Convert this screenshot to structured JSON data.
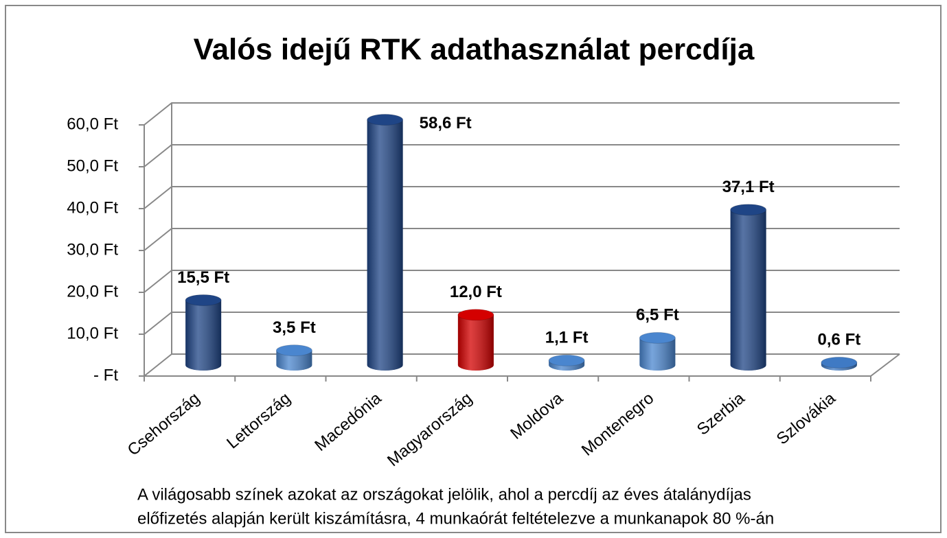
{
  "chart_data": {
    "type": "bar3d",
    "title": "Valós idejű RTK adathasználat percdíja",
    "categories": [
      "Csehország",
      "Lettország",
      "Macedónia",
      "Magyarország",
      "Moldova",
      "Montenegro",
      "Szerbia",
      "Szlovákia"
    ],
    "values": [
      15.5,
      3.5,
      58.6,
      12.0,
      1.1,
      6.5,
      37.1,
      0.6
    ],
    "value_labels": [
      "15,5 Ft",
      "3,5 Ft",
      "58,6 Ft",
      "12,0 Ft",
      "1,1 Ft",
      "6,5 Ft",
      "37,1 Ft",
      "0,6 Ft"
    ],
    "colors": [
      "#1f4586",
      "#4a86cf",
      "#1f4586",
      "#d40000",
      "#4a86cf",
      "#4a86cf",
      "#1f4586",
      "#3f7ac4"
    ],
    "ylim": [
      0,
      60
    ],
    "yticks": [
      {
        "value": 0,
        "label": "-  Ft"
      },
      {
        "value": 10,
        "label": "10,0 Ft"
      },
      {
        "value": 20,
        "label": "20,0 Ft"
      },
      {
        "value": 30,
        "label": "30,0 Ft"
      },
      {
        "value": 40,
        "label": "40,0 Ft"
      },
      {
        "value": 50,
        "label": "50,0 Ft"
      },
      {
        "value": 60,
        "label": "60,0 Ft"
      }
    ],
    "grid": true,
    "annotation": [
      "A világosabb színek azokat az országokat jelölik, ahol a percdíj az éves átalánydíjas",
      "előfizetés alapján került kiszámításra, 4 munkaórát feltételezve a munkanapok 80 %-án"
    ]
  }
}
